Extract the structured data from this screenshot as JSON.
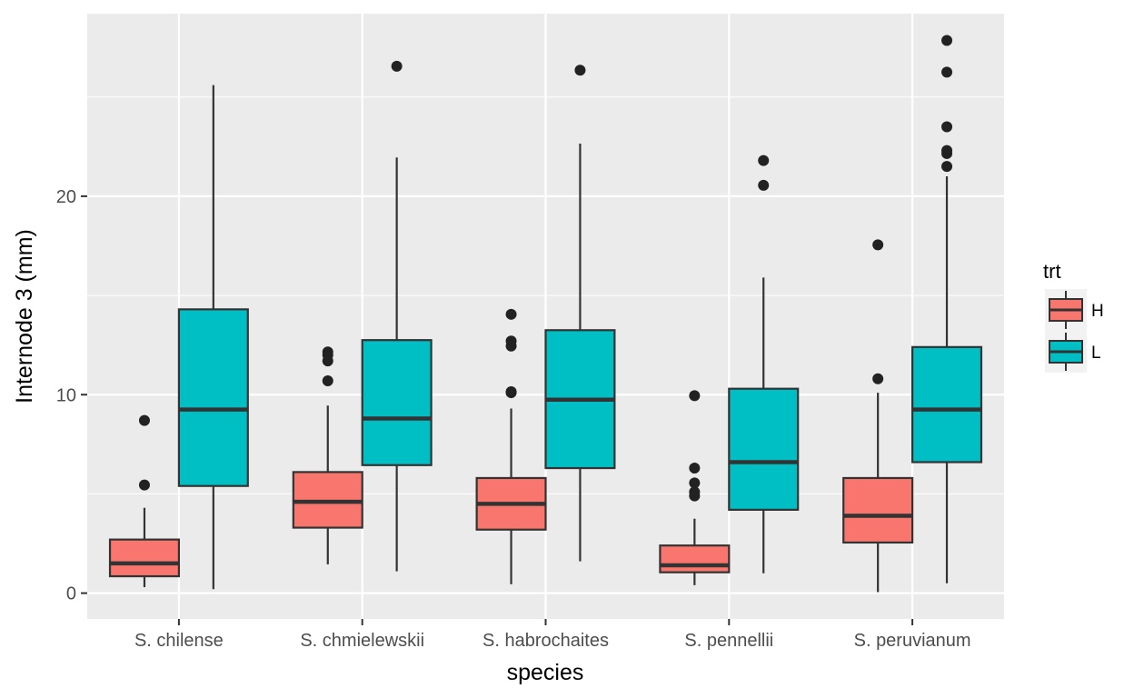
{
  "chart_data": {
    "type": "boxplot",
    "xlabel": "species",
    "ylabel": "Internode 3 (mm)",
    "categories": [
      "S. chilense",
      "S. chmielewskii",
      "S. habrochaites",
      "S. pennellii",
      "S. peruvianum"
    ],
    "ylim": [
      -1.3,
      29.2
    ],
    "yticks": [
      0,
      10,
      20
    ],
    "grid": true,
    "legend": {
      "title": "trt",
      "position": "right",
      "entries": [
        {
          "label": "H",
          "color": "#F8766D"
        },
        {
          "label": "L",
          "color": "#00BFC4"
        }
      ]
    },
    "series": [
      {
        "name": "H",
        "color": "#F8766D",
        "boxes": [
          {
            "category": "S. chilense",
            "whisker_low": 0.3,
            "q1": 0.85,
            "median": 1.5,
            "q3": 2.7,
            "whisker_high": 4.3,
            "outliers": [
              5.45,
              8.7
            ]
          },
          {
            "category": "S. chmielewskii",
            "whisker_low": 1.45,
            "q1": 3.3,
            "median": 4.6,
            "q3": 6.1,
            "whisker_high": 9.45,
            "outliers": [
              10.7,
              11.7,
              12.0,
              12.15
            ]
          },
          {
            "category": "S. habrochaites",
            "whisker_low": 0.45,
            "q1": 3.2,
            "median": 4.5,
            "q3": 5.8,
            "whisker_high": 9.3,
            "outliers": [
              10.1,
              10.15,
              12.45,
              12.7,
              14.05
            ]
          },
          {
            "category": "S. pennellii",
            "whisker_low": 0.4,
            "q1": 1.05,
            "median": 1.4,
            "q3": 2.4,
            "whisker_high": 3.75,
            "outliers": [
              4.9,
              5.1,
              5.55,
              6.3,
              9.95
            ]
          },
          {
            "category": "S. peruvianum",
            "whisker_low": 0.05,
            "q1": 2.55,
            "median": 3.9,
            "q3": 5.8,
            "whisker_high": 10.1,
            "outliers": [
              10.8,
              17.55
            ]
          }
        ]
      },
      {
        "name": "L",
        "color": "#00BFC4",
        "boxes": [
          {
            "category": "S. chilense",
            "whisker_low": 0.2,
            "q1": 5.4,
            "median": 9.25,
            "q3": 14.3,
            "whisker_high": 25.6,
            "outliers": []
          },
          {
            "category": "S. chmielewskii",
            "whisker_low": 1.1,
            "q1": 6.45,
            "median": 8.8,
            "q3": 12.75,
            "whisker_high": 21.95,
            "outliers": [
              26.55
            ]
          },
          {
            "category": "S. habrochaites",
            "whisker_low": 1.6,
            "q1": 6.3,
            "median": 9.75,
            "q3": 13.25,
            "whisker_high": 22.65,
            "outliers": [
              26.35
            ]
          },
          {
            "category": "S. pennellii",
            "whisker_low": 1.0,
            "q1": 4.2,
            "median": 6.6,
            "q3": 10.3,
            "whisker_high": 15.9,
            "outliers": [
              20.55,
              21.8
            ]
          },
          {
            "category": "S. peruvianum",
            "whisker_low": 0.5,
            "q1": 6.6,
            "median": 9.25,
            "q3": 12.4,
            "whisker_high": 21.0,
            "outliers": [
              21.5,
              22.15,
              22.3,
              23.5,
              26.25,
              27.85
            ]
          }
        ]
      }
    ]
  }
}
